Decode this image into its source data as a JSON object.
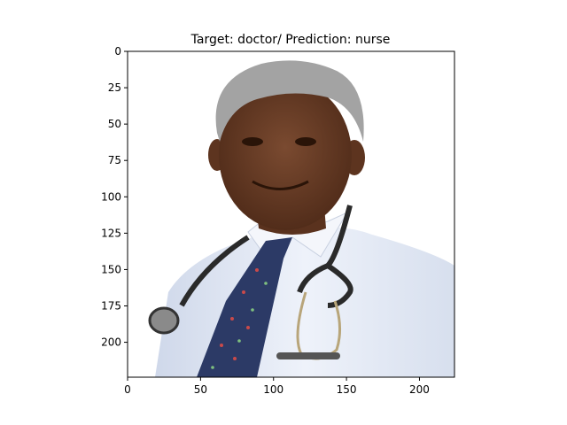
{
  "chart_data": {
    "type": "image",
    "title": "Target: doctor/ Prediction: nurse",
    "xlabel": "",
    "ylabel": "",
    "xlim": [
      0,
      224
    ],
    "ylim": [
      224,
      0
    ],
    "x_ticks": [
      0,
      50,
      100,
      150,
      200
    ],
    "y_ticks": [
      0,
      25,
      50,
      75,
      100,
      125,
      150,
      175,
      200
    ],
    "grid": false,
    "image_subject": "portrait photo of a doctor with stethoscope and tie",
    "colors": {
      "shirt": "#dfe7f4",
      "tie": "#2c3a66",
      "skin": "#6b3f28",
      "hair": "#9a9a9a",
      "stethoscope": "#2a2a2a"
    }
  }
}
